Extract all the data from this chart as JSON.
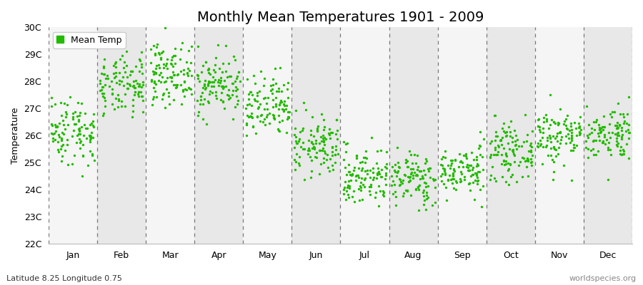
{
  "title": "Monthly Mean Temperatures 1901 - 2009",
  "ylabel": "Temperature",
  "subtitle": "Latitude 8.25 Longitude 0.75",
  "watermark": "worldspecies.org",
  "legend_label": "Mean Temp",
  "dot_color": "#22bb00",
  "background_color": "#ffffff",
  "band_color_odd": "#e8e8e8",
  "band_color_even": "#f5f5f5",
  "ylim": [
    22,
    30
  ],
  "yticks": [
    22,
    23,
    24,
    25,
    26,
    27,
    28,
    29,
    30
  ],
  "months": [
    "Jan",
    "Feb",
    "Mar",
    "Apr",
    "May",
    "Jun",
    "Jul",
    "Aug",
    "Sep",
    "Oct",
    "Nov",
    "Dec"
  ],
  "mean_temps": [
    26.2,
    27.8,
    28.3,
    27.9,
    27.0,
    25.6,
    24.5,
    24.4,
    24.7,
    25.4,
    26.0,
    26.1
  ],
  "std_temps": [
    0.65,
    0.55,
    0.55,
    0.55,
    0.6,
    0.55,
    0.55,
    0.5,
    0.45,
    0.5,
    0.55,
    0.5
  ],
  "n_years": 109,
  "seed": 42,
  "figsize": [
    9.0,
    4.0
  ],
  "dpi": 100,
  "title_fontsize": 14,
  "axis_label_fontsize": 9,
  "tick_fontsize": 9,
  "subtitle_fontsize": 8,
  "watermark_fontsize": 8,
  "dot_size": 6,
  "dot_alpha": 1.0
}
